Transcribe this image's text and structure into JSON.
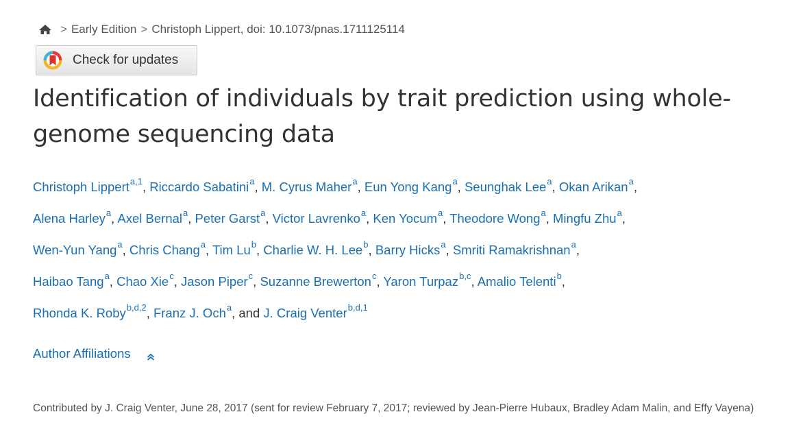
{
  "breadcrumb": {
    "items": [
      "Early Edition",
      "Christoph Lippert, doi: 10.1073/pnas.1711125114"
    ],
    "separator": ">"
  },
  "update_button": {
    "label": "Check for updates"
  },
  "article": {
    "title": "Identification of individuals by trait prediction using whole-genome sequencing data",
    "title_line1": "Identification of individuals by trait prediction using whole-",
    "title_line2": "genome sequencing data"
  },
  "authors": [
    {
      "name": "Christoph Lippert",
      "sup": "a,1"
    },
    {
      "name": "Riccardo Sabatini",
      "sup": "a"
    },
    {
      "name": "M. Cyrus Maher",
      "sup": "a"
    },
    {
      "name": "Eun Yong Kang",
      "sup": "a"
    },
    {
      "name": "Seunghak Lee",
      "sup": "a"
    },
    {
      "name": "Okan Arikan",
      "sup": "a"
    },
    {
      "name": "Alena Harley",
      "sup": "a"
    },
    {
      "name": "Axel Bernal",
      "sup": "a"
    },
    {
      "name": "Peter Garst",
      "sup": "a"
    },
    {
      "name": "Victor Lavrenko",
      "sup": "a"
    },
    {
      "name": "Ken Yocum",
      "sup": "a"
    },
    {
      "name": "Theodore Wong",
      "sup": "a"
    },
    {
      "name": "Mingfu Zhu",
      "sup": "a"
    },
    {
      "name": "Wen-Yun Yang",
      "sup": "a"
    },
    {
      "name": "Chris Chang",
      "sup": "a"
    },
    {
      "name": "Tim Lu",
      "sup": "b"
    },
    {
      "name": "Charlie W. H. Lee",
      "sup": "b"
    },
    {
      "name": "Barry Hicks",
      "sup": "a"
    },
    {
      "name": "Smriti Ramakrishnan",
      "sup": "a"
    },
    {
      "name": "Haibao Tang",
      "sup": "a"
    },
    {
      "name": "Chao Xie",
      "sup": "c"
    },
    {
      "name": "Jason Piper",
      "sup": "c"
    },
    {
      "name": "Suzanne Brewerton",
      "sup": "c"
    },
    {
      "name": "Yaron Turpaz",
      "sup": "b,c"
    },
    {
      "name": "Amalio Telenti",
      "sup": "b"
    },
    {
      "name": "Rhonda K. Roby",
      "sup": "b,d,2"
    },
    {
      "name": "Franz J. Och",
      "sup": "a"
    },
    {
      "name": "J. Craig Venter",
      "sup": "b,d,1"
    }
  ],
  "authors_conjunction": "and",
  "affiliations": {
    "label": "Author Affiliations"
  },
  "contributed": "Contributed by J. Craig Venter, June 28, 2017 (sent for review February 7, 2017; reviewed by Jean-Pierre Hubaux, Bradley Adam Malin, and Effy Vayena)",
  "colors": {
    "link": "#1a6fb0",
    "text": "#333333",
    "muted": "#555555"
  },
  "icons": {
    "home": "home-icon",
    "update": "crossmark-icon",
    "collapse": "chevron-up-icon"
  }
}
